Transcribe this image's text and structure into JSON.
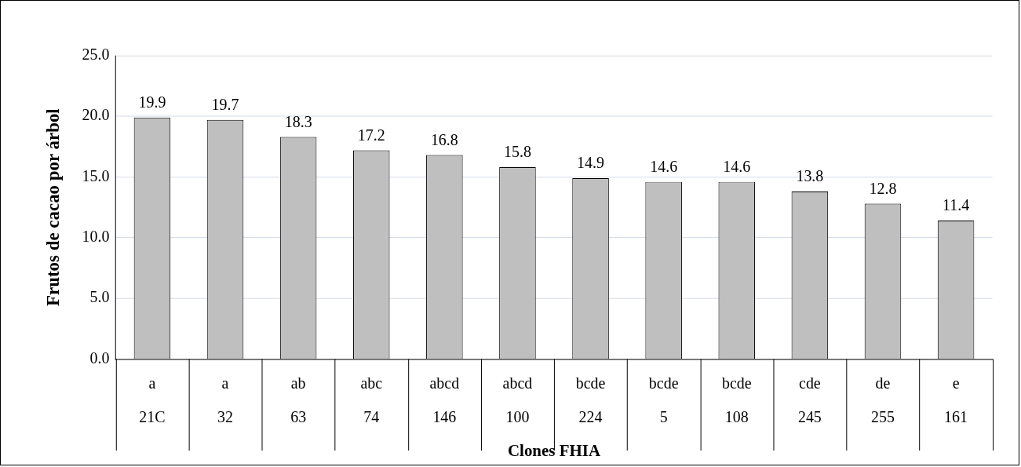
{
  "chart_data": {
    "type": "bar",
    "xlabel": "Clones FHIA",
    "ylabel": "Frutos de cacao por árbol",
    "categories": [
      "21C",
      "32",
      "63",
      "74",
      "146",
      "100",
      "224",
      "5",
      "108",
      "245",
      "255",
      "161"
    ],
    "values": [
      19.9,
      19.7,
      18.3,
      17.2,
      16.8,
      15.8,
      14.9,
      14.6,
      14.6,
      13.8,
      12.8,
      11.4
    ],
    "color": "#bfbfbf",
    "ylim": [
      0,
      25
    ],
    "yticks": [
      {
        "value": 0,
        "label": "0.0"
      },
      {
        "value": 5,
        "label": "5.0"
      },
      {
        "value": 10,
        "label": "10.0"
      },
      {
        "value": 15,
        "label": "15.0"
      },
      {
        "value": 20,
        "label": "20.0"
      },
      {
        "value": 25,
        "label": "25.0"
      }
    ],
    "grid": "y",
    "data_labels": true,
    "legend": false,
    "annotations": [
      "a",
      "a",
      "ab",
      "abc",
      "abcd",
      "abcd",
      "bcde",
      "bcde",
      "bcde",
      "cde",
      "de",
      "e"
    ]
  }
}
